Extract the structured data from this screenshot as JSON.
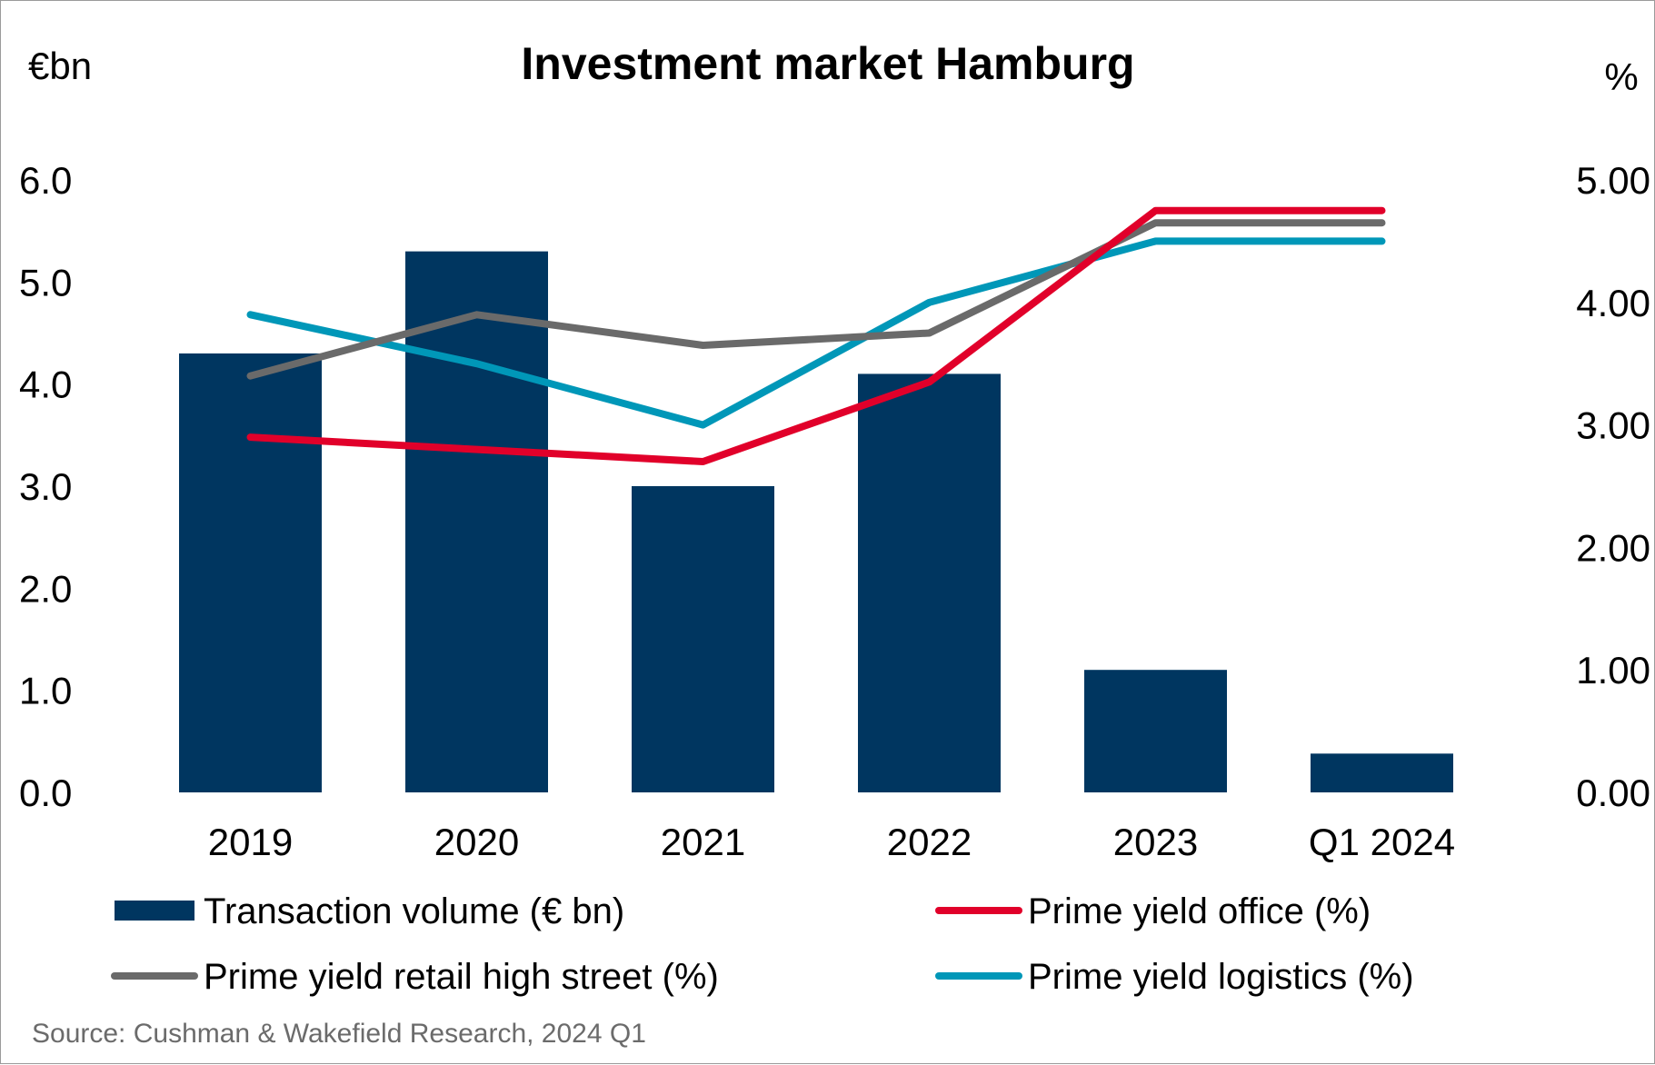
{
  "chart_data": {
    "type": "bar",
    "title": "Investment market Hamburg",
    "left_unit": "€bn",
    "right_unit": "%",
    "categories": [
      "2019",
      "2020",
      "2021",
      "2022",
      "2023",
      "Q1 2024"
    ],
    "y_left": {
      "min": 0,
      "max": 6,
      "ticks": [
        "0.0",
        "1.0",
        "2.0",
        "3.0",
        "4.0",
        "5.0",
        "6.0"
      ]
    },
    "y_right": {
      "min": 0,
      "max": 5,
      "ticks": [
        "0.00",
        "1.00",
        "2.00",
        "3.00",
        "4.00",
        "5.00"
      ]
    },
    "bars": {
      "name": "Transaction volume (€ bn)",
      "color": "#003660",
      "values": [
        4.3,
        5.3,
        3.0,
        4.1,
        1.2,
        0.38
      ]
    },
    "lines": [
      {
        "name": "Prime yield office (%)",
        "color": "#e1002a",
        "values": [
          2.9,
          2.8,
          2.7,
          3.35,
          4.75,
          4.75
        ]
      },
      {
        "name": "Prime yield retail high street (%)",
        "color": "#6a6a6a",
        "values": [
          3.4,
          3.9,
          3.65,
          3.75,
          4.65,
          4.65
        ]
      },
      {
        "name": "Prime yield logistics (%)",
        "color": "#0097b8",
        "values": [
          3.9,
          3.5,
          3.0,
          4.0,
          4.5,
          4.5
        ]
      }
    ],
    "legend_position": "bottom",
    "grid": false
  },
  "source": "Source: Cushman & Wakefield Research, 2024 Q1"
}
